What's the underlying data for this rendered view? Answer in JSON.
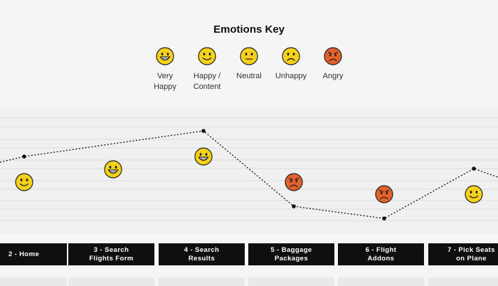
{
  "key": {
    "title": "Emotions Key",
    "items": [
      {
        "label": "Very\nHappy",
        "emotion": "very-happy",
        "color": "#F4D21B"
      },
      {
        "label": "Happy /\nContent",
        "emotion": "happy",
        "color": "#F4D21B"
      },
      {
        "label": "Neutral",
        "emotion": "neutral",
        "color": "#F4D21B"
      },
      {
        "label": "Unhappy",
        "emotion": "unhappy",
        "color": "#F4D21B"
      },
      {
        "label": "Angry",
        "emotion": "angry",
        "color": "#E2622B"
      }
    ]
  },
  "journey": {
    "steps": [
      {
        "label": "2 - Home",
        "emotion": "happy"
      },
      {
        "label": "3 - Search\nFlights Form",
        "emotion": "very-happy"
      },
      {
        "label": "4 - Search\nResults",
        "emotion": "very-happy"
      },
      {
        "label": "5 - Baggage\nPackages",
        "emotion": "angry"
      },
      {
        "label": "6 - Flight\nAddons",
        "emotion": "angry"
      },
      {
        "label": "7 - Pick Seats\non Plane",
        "emotion": "happy"
      }
    ]
  }
}
